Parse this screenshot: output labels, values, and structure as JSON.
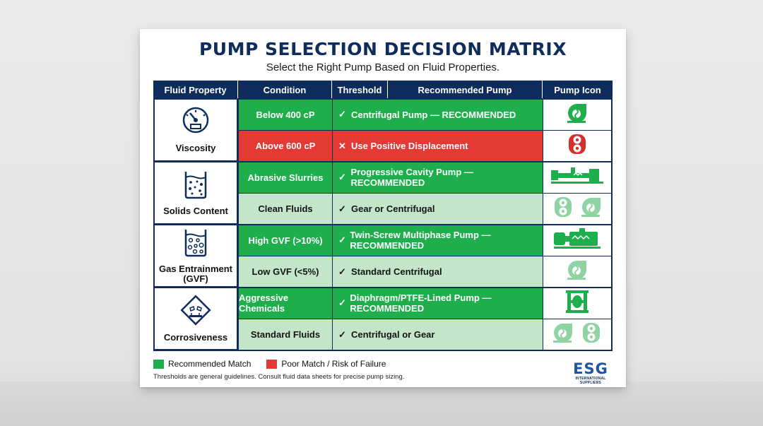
{
  "title": "PUMP SELECTION DECISION MATRIX",
  "subtitle": "Select the Right Pump Based on Fluid Properties.",
  "headers": {
    "property": "Fluid Property",
    "condition": "Condition",
    "threshold": "Threshold",
    "recommended": "Recommended Pump",
    "icon": "Pump Icon"
  },
  "groups": [
    {
      "property": "Viscosity",
      "icon": "gauge-icon"
    },
    {
      "property": "Solids Content",
      "icon": "beaker-solids-icon"
    },
    {
      "property": "Gas Entrainment\n(GVF)",
      "icon": "beaker-bubbles-icon"
    },
    {
      "property": "Corrosiveness",
      "icon": "corrosive-hazard-icon"
    }
  ],
  "rows": [
    {
      "condition": "Below 400 cP",
      "mark": "✓",
      "recommendation": "Centrifugal Pump — RECOMMENDED",
      "status": "recommended",
      "pump_icons": [
        "centrifugal-pump-icon"
      ]
    },
    {
      "condition": "Above 600 cP",
      "mark": "✕",
      "recommendation": "Use Positive Displacement",
      "status": "poor",
      "pump_icons": [
        "gear-pump-icon"
      ]
    },
    {
      "condition": "Abrasive Slurries",
      "mark": "✓",
      "recommendation": "Progressive Cavity Pump — RECOMMENDED",
      "status": "recommended",
      "pump_icons": [
        "progressive-cavity-pump-icon"
      ]
    },
    {
      "condition": "Clean Fluids",
      "mark": "✓",
      "recommendation": "Gear or Centrifugal",
      "status": "acceptable",
      "pump_icons": [
        "gear-pump-icon",
        "centrifugal-pump-icon"
      ]
    },
    {
      "condition": "High GVF (>10%)",
      "mark": "✓",
      "recommendation": "Twin-Screw Multiphase Pump — RECOMMENDED",
      "status": "recommended",
      "pump_icons": [
        "twin-screw-pump-icon"
      ]
    },
    {
      "condition": "Low GVF (<5%)",
      "mark": "✓",
      "recommendation": "Standard Centrifugal",
      "status": "acceptable",
      "pump_icons": [
        "centrifugal-pump-icon"
      ]
    },
    {
      "condition": "Aggressive Chemicals",
      "mark": "✓",
      "recommendation": "Diaphragm/PTFE-Lined Pump — RECOMMENDED",
      "status": "recommended",
      "pump_icons": [
        "diaphragm-pump-icon"
      ]
    },
    {
      "condition": "Standard Fluids",
      "mark": "✓",
      "recommendation": "Centrifugal or Gear",
      "status": "acceptable",
      "pump_icons": [
        "centrifugal-pump-icon",
        "gear-pump-icon"
      ]
    }
  ],
  "legend": {
    "recommended": "Recommended Match",
    "poor": "Poor Match / Risk of Failure"
  },
  "footnote": "Thresholds are general guidelines. Consult fluid data sheets for precise pump sizing.",
  "logo": {
    "name": "ESG",
    "tagline": "INTERNATIONAL SUPPLIERS"
  },
  "colors": {
    "navy": "#0f2d5c",
    "recommended": "#1fae4c",
    "poor": "#e53935",
    "acceptable": "#c3e6c9",
    "logo_blue": "#1e56a0"
  }
}
